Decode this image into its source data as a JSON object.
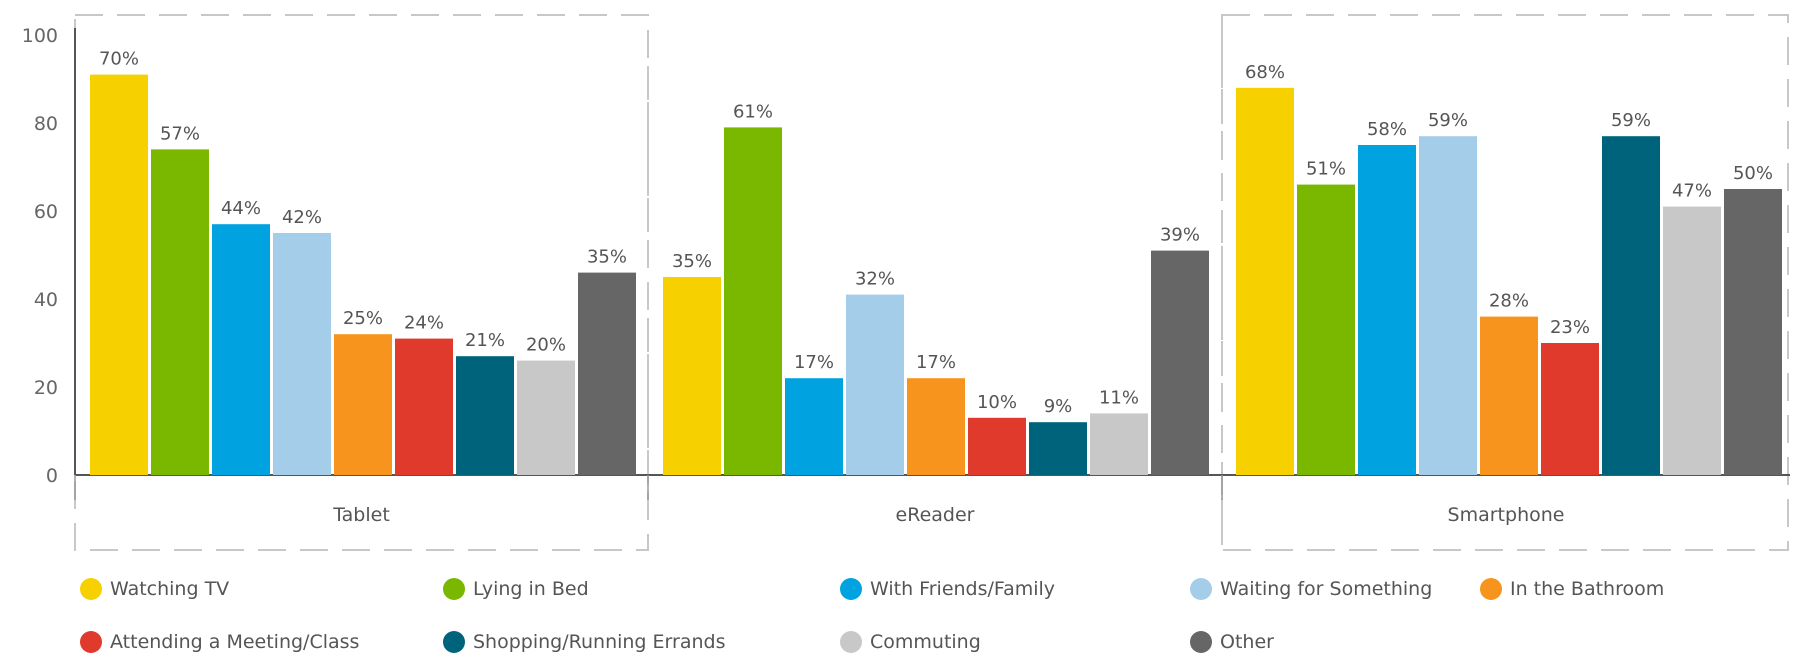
{
  "chart_data": {
    "type": "bar",
    "groups": [
      "Tablet",
      "eReader",
      "Smartphone"
    ],
    "y_ticks": [
      "0",
      "20",
      "40",
      "60",
      "80",
      "100"
    ],
    "ylim": [
      0,
      100
    ],
    "title": "",
    "xlabel": "",
    "ylabel": "",
    "grid": false,
    "legend_position": "bottom",
    "series": [
      {
        "name": "Watching TV",
        "color": "#F7D000",
        "values": [
          70,
          35,
          68
        ]
      },
      {
        "name": "Lying in Bed",
        "color": "#7AB800",
        "values": [
          57,
          61,
          51
        ]
      },
      {
        "name": "With Friends/Family",
        "color": "#00A3E0",
        "values": [
          44,
          17,
          58
        ]
      },
      {
        "name": "Waiting for Something",
        "color": "#A4CDEA",
        "values": [
          42,
          32,
          59
        ]
      },
      {
        "name": "In the Bathroom",
        "color": "#F7941D",
        "values": [
          25,
          17,
          28
        ]
      },
      {
        "name": "Attending a Meeting/Class",
        "color": "#E03A2C",
        "values": [
          24,
          10,
          23
        ]
      },
      {
        "name": "Shopping/Running Errands",
        "color": "#00637C",
        "values": [
          21,
          9,
          59
        ]
      },
      {
        "name": "Commuting",
        "color": "#C8C8C8",
        "values": [
          20,
          11,
          47
        ]
      },
      {
        "name": "Other",
        "color": "#666666",
        "values": [
          35,
          39,
          50
        ]
      }
    ],
    "bar_heights_pct": [
      [
        91,
        45,
        88
      ],
      [
        74,
        79,
        66
      ],
      [
        57,
        22,
        75
      ],
      [
        55,
        41,
        77
      ],
      [
        32,
        22,
        36
      ],
      [
        31,
        13,
        30
      ],
      [
        27,
        12,
        77
      ],
      [
        26,
        14,
        61
      ],
      [
        46,
        51,
        65
      ]
    ]
  }
}
